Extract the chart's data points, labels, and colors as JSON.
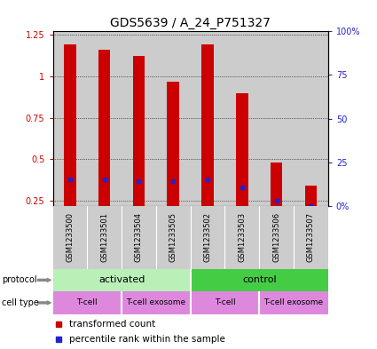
{
  "title": "GDS5639 / A_24_P751327",
  "samples": [
    "GSM1233500",
    "GSM1233501",
    "GSM1233504",
    "GSM1233505",
    "GSM1233502",
    "GSM1233503",
    "GSM1233506",
    "GSM1233507"
  ],
  "transformed_counts": [
    1.19,
    1.16,
    1.12,
    0.97,
    1.19,
    0.9,
    0.48,
    0.34
  ],
  "percentile_ranks": [
    0.38,
    0.38,
    0.37,
    0.37,
    0.38,
    0.33,
    0.25,
    0.22
  ],
  "bar_bottom": 0.22,
  "ylim_left": [
    0.22,
    1.27
  ],
  "ylim_right": [
    0,
    100
  ],
  "yticks_left": [
    0.25,
    0.5,
    0.75,
    1.0,
    1.25
  ],
  "yticks_right": [
    0,
    25,
    50,
    75,
    100
  ],
  "ytick_labels_left": [
    "0.25",
    "0.5",
    "0.75",
    "1",
    "1.25"
  ],
  "ytick_labels_right": [
    "0%",
    "25",
    "50",
    "75",
    "100%"
  ],
  "bar_color": "#cc0000",
  "percentile_color": "#2222cc",
  "protocol_labels": [
    "activated",
    "control"
  ],
  "protocol_ranges": [
    [
      0,
      4
    ],
    [
      4,
      8
    ]
  ],
  "protocol_color_activated": "#b8f0b8",
  "protocol_color_control": "#44cc44",
  "cell_type_labels": [
    "T-cell",
    "T-cell exosome",
    "T-cell",
    "T-cell exosome"
  ],
  "cell_type_ranges": [
    [
      0,
      2
    ],
    [
      2,
      4
    ],
    [
      4,
      6
    ],
    [
      6,
      8
    ]
  ],
  "cell_type_color": "#dd88dd",
  "legend_red_label": "transformed count",
  "legend_blue_label": "percentile rank within the sample",
  "tick_fontsize": 7,
  "title_fontsize": 10,
  "background_gray": "#cccccc",
  "bar_width": 0.35
}
